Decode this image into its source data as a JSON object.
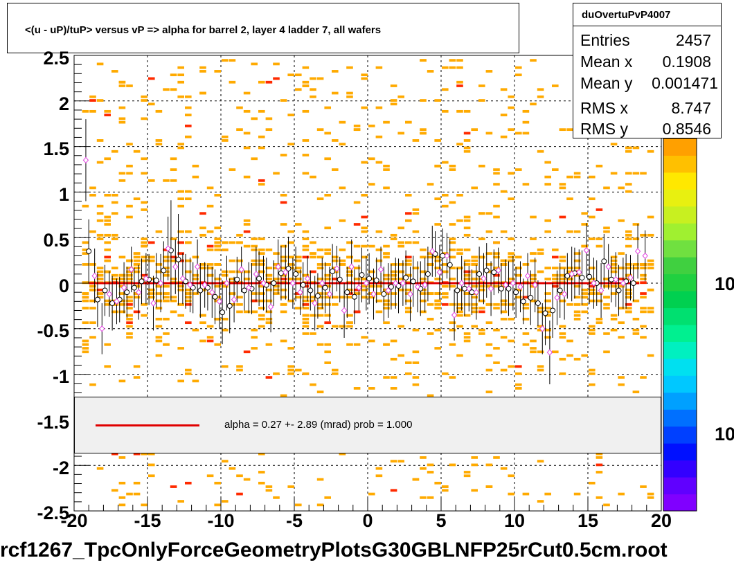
{
  "title": "<(u - uP)/tuP> versus   vP => alpha for barrel 2, layer 4 ladder 7, all wafers",
  "stats": {
    "name": "duOvertuPvP4007",
    "rows": [
      {
        "label": "Entries",
        "value": "2457"
      },
      {
        "label": "Mean x",
        "value": "0.1908"
      },
      {
        "label": "Mean y",
        "value": "0.001471"
      },
      {
        "label": "RMS x",
        "value": "8.747"
      },
      {
        "label": "RMS y",
        "value": "0.8546"
      }
    ]
  },
  "fit": {
    "text": "alpha =    0.27 +-  2.89 (mrad) prob = 1.000",
    "line_color": "#e00000"
  },
  "filename": "rcf1267_TpcOnlyForceGeometryPlotsG30GBLNFP25rCut0.5cm.root",
  "colors": {
    "cell_main": "#ffaa00",
    "cell_high": "#ff2a00",
    "profile_black": "#000000",
    "profile_magenta": "#e040e0",
    "fit_line": "#e00000"
  },
  "chart_data": {
    "type": "scatter",
    "xlim": [
      -20,
      20
    ],
    "ylim": [
      -2.5,
      2.5
    ],
    "grid": true,
    "x_ticks": [
      "-20",
      "-15",
      "-10",
      "-5",
      "0",
      "5",
      "10",
      "15",
      "20"
    ],
    "y_ticks": [
      "2.5",
      "2",
      "1.5",
      "1",
      "0.5",
      "0",
      "-0.5",
      "-1",
      "-1.5",
      "-2",
      "-2.5"
    ],
    "z_tick_labels": [
      "10",
      "10"
    ],
    "fit_line": {
      "y": 0.0
    },
    "profile_black": {
      "x": [
        -19.0,
        -18.4,
        -17.9,
        -17.4,
        -16.9,
        -16.4,
        -15.9,
        -15.4,
        -14.9,
        -14.4,
        -13.9,
        -13.4,
        -12.9,
        -12.4,
        -11.9,
        -11.4,
        -10.9,
        -10.4,
        -9.9,
        -9.4,
        -8.9,
        -8.4,
        -7.9,
        -7.4,
        -6.9,
        -6.4,
        -5.9,
        -5.4,
        -4.9,
        -4.4,
        -3.9,
        -3.4,
        -2.9,
        -2.4,
        -1.9,
        -1.4,
        -0.9,
        -0.4,
        0.1,
        0.6,
        1.1,
        1.6,
        2.1,
        2.6,
        3.1,
        3.6,
        4.1,
        4.6,
        5.1,
        5.6,
        6.1,
        6.6,
        7.1,
        7.6,
        8.1,
        8.6,
        9.1,
        9.6,
        10.1,
        10.6,
        11.1,
        11.6,
        12.1,
        12.6,
        13.1,
        13.6,
        14.1,
        14.6,
        15.1,
        15.6,
        16.1,
        16.6,
        17.1,
        17.6,
        18.1
      ],
      "y": [
        0.35,
        -0.18,
        -0.08,
        -0.22,
        -0.18,
        -0.1,
        -0.05,
        0.02,
        0.04,
        0.03,
        0.14,
        0.36,
        0.26,
        0.02,
        -0.05,
        -0.08,
        -0.05,
        -0.15,
        -0.32,
        -0.25,
        0.04,
        -0.08,
        -0.06,
        0.05,
        -0.02,
        0.0,
        0.11,
        0.16,
        0.1,
        -0.02,
        -0.08,
        -0.14,
        -0.05,
        0.13,
        0.04,
        -0.1,
        -0.15,
        0.09,
        0.05,
        0.03,
        -0.12,
        -0.04,
        -0.03,
        0.06,
        0.02,
        -0.06,
        0.1,
        0.32,
        0.3,
        0.2,
        -0.08,
        -0.06,
        -0.1,
        0.1,
        0.14,
        0.12,
        -0.06,
        -0.06,
        -0.1,
        -0.2,
        -0.16,
        -0.22,
        -0.33,
        -0.3,
        -0.08,
        0.08,
        0.11,
        0.06,
        0.07,
        0.0,
        0.24,
        0.04,
        -0.08,
        0.02,
        0.0
      ],
      "err": [
        0.35,
        0.3,
        0.28,
        0.3,
        0.25,
        0.28,
        0.22,
        0.25,
        0.28,
        0.3,
        0.32,
        0.55,
        0.5,
        0.3,
        0.28,
        0.3,
        0.25,
        0.3,
        0.35,
        0.3,
        0.25,
        0.22,
        0.28,
        0.3,
        0.3,
        0.25,
        0.3,
        0.35,
        0.3,
        0.25,
        0.22,
        0.25,
        0.28,
        0.3,
        0.25,
        0.28,
        0.3,
        0.3,
        0.28,
        0.25,
        0.3,
        0.25,
        0.3,
        0.3,
        0.28,
        0.3,
        0.3,
        0.25,
        0.3,
        0.28,
        0.25,
        0.3,
        0.25,
        0.3,
        0.3,
        0.25,
        0.28,
        0.3,
        0.28,
        0.25,
        0.3,
        0.25,
        0.35,
        0.3,
        0.3,
        0.25,
        0.28,
        0.3,
        0.3,
        0.25,
        0.3,
        0.25,
        0.28,
        0.3,
        0.2
      ]
    },
    "profile_magenta": {
      "x": [
        -19.2,
        -18.6,
        -18.1,
        -17.6,
        -17.1,
        -16.6,
        -16.1,
        -15.6,
        -15.1,
        -14.6,
        -14.1,
        -13.6,
        -13.1,
        -12.6,
        -12.1,
        -11.6,
        -11.1,
        -10.6,
        -10.1,
        -9.6,
        -9.1,
        -8.6,
        -8.1,
        -7.6,
        -7.1,
        -6.6,
        -6.1,
        -5.6,
        -5.1,
        -4.6,
        -4.1,
        -3.6,
        -3.1,
        -2.6,
        -2.1,
        -1.6,
        -1.1,
        -0.6,
        -0.1,
        0.4,
        0.9,
        1.4,
        1.9,
        2.4,
        2.9,
        3.4,
        3.9,
        4.4,
        4.9,
        5.4,
        5.9,
        6.4,
        6.9,
        7.4,
        7.9,
        8.4,
        8.9,
        9.4,
        9.9,
        10.4,
        10.9,
        11.4,
        11.9,
        12.4,
        12.9,
        13.4,
        13.9,
        14.4,
        14.9,
        15.4,
        15.9,
        16.4,
        16.9,
        17.4,
        17.9,
        18.4,
        18.9
      ],
      "y": [
        1.35,
        0.08,
        -0.5,
        -0.12,
        -0.2,
        -0.05,
        0.15,
        -0.1,
        0.05,
        -0.22,
        0.0,
        0.38,
        0.18,
        0.05,
        -0.02,
        0.18,
        -0.02,
        -0.1,
        -0.2,
        0.0,
        -0.18,
        0.15,
        -0.05,
        0.1,
        0.0,
        -0.26,
        0.18,
        0.12,
        0.0,
        -0.1,
        0.05,
        -0.22,
        0.0,
        -0.12,
        0.16,
        -0.3,
        0.18,
        -0.05,
        0.0,
        -0.12,
        0.15,
        -0.08,
        0.0,
        0.0,
        -0.12,
        -0.04,
        -0.02,
        0.35,
        0.12,
        0.3,
        -0.35,
        0.0,
        -0.06,
        -0.1,
        0.05,
        -0.06,
        0.14,
        -0.02,
        0.0,
        -0.04,
        0.08,
        -0.02,
        -0.5,
        -0.76,
        -0.16,
        -0.12,
        0.1,
        0.12,
        0.36,
        0.0,
        -0.08,
        0.18,
        0.04,
        0.0,
        0.06,
        0.35,
        0.3
      ],
      "err": [
        0.45,
        0.3,
        0.28,
        0.25,
        0.25,
        0.28,
        0.25,
        0.3,
        0.28,
        0.3,
        0.32,
        0.35,
        0.3,
        0.28,
        0.3,
        0.3,
        0.25,
        0.28,
        0.3,
        0.3,
        0.25,
        0.25,
        0.28,
        0.3,
        0.3,
        0.28,
        0.3,
        0.3,
        0.28,
        0.25,
        0.25,
        0.3,
        0.28,
        0.3,
        0.25,
        0.3,
        0.3,
        0.25,
        0.3,
        0.28,
        0.25,
        0.3,
        0.28,
        0.25,
        0.3,
        0.28,
        0.3,
        0.28,
        0.3,
        0.25,
        0.28,
        0.3,
        0.25,
        0.3,
        0.28,
        0.3,
        0.25,
        0.28,
        0.3,
        0.28,
        0.25,
        0.3,
        0.28,
        0.35,
        0.3,
        0.28,
        0.3,
        0.25,
        0.3,
        0.28,
        0.3,
        0.25,
        0.3,
        0.28,
        0.25,
        0.3,
        0.28
      ]
    }
  }
}
